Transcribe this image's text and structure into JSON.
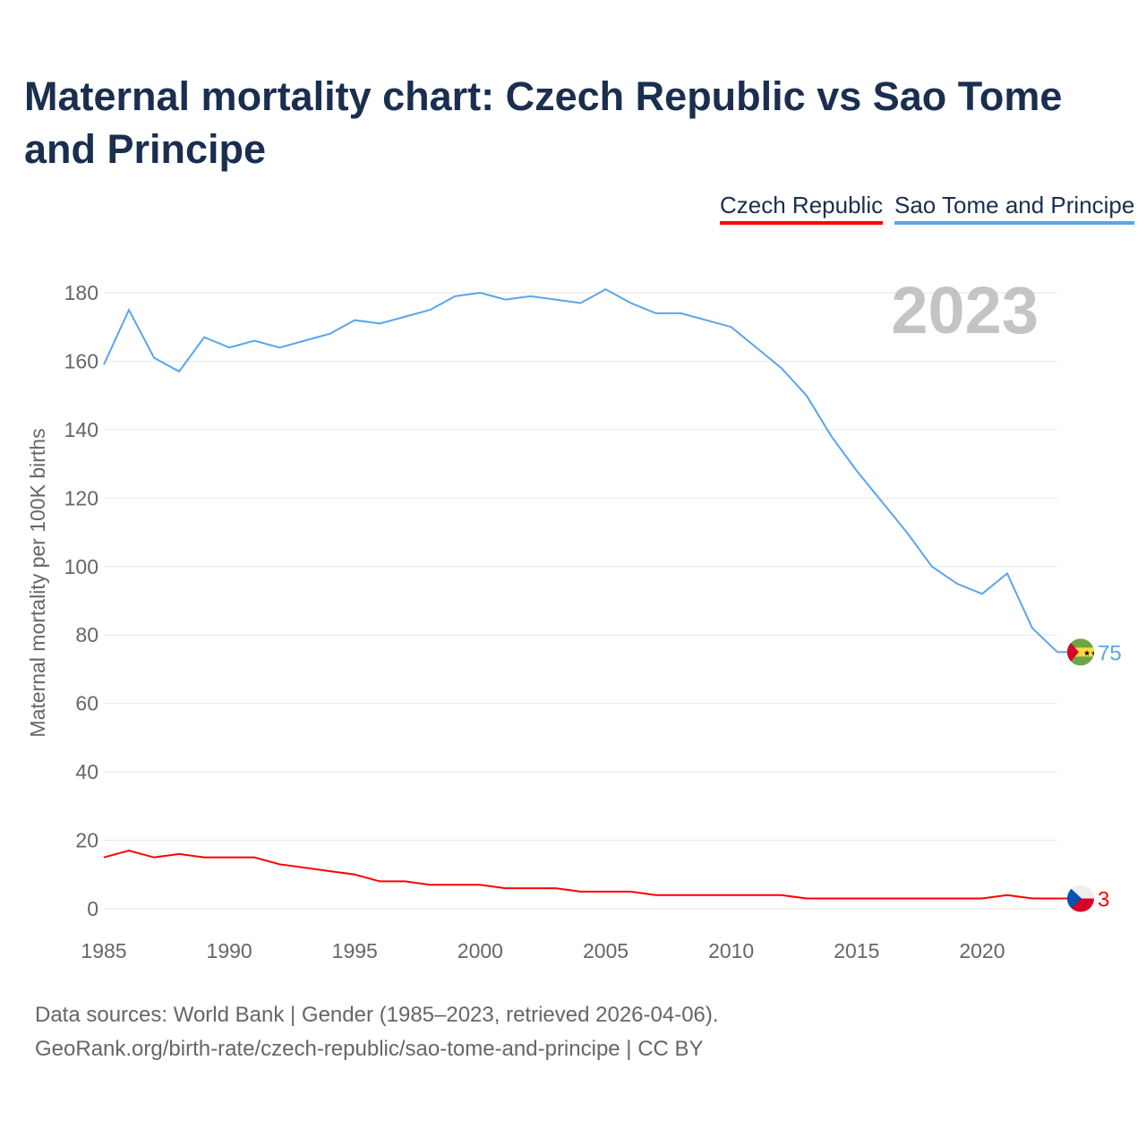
{
  "title": "Maternal mortality chart: Czech Republic vs Sao Tome and Principe",
  "year_watermark": "2023",
  "footer": {
    "line1": "Data sources: World Bank | Gender (1985–2023, retrieved 2026-04-06).",
    "line2": "GeoRank.org/birth-rate/czech-republic/sao-tome-and-principe | CC BY"
  },
  "chart_data": {
    "type": "line",
    "title": "Maternal mortality chart: Czech Republic vs Sao Tome and Principe",
    "xlabel": "",
    "ylabel": "Maternal mortality per 100K births",
    "x": [
      1985,
      1986,
      1987,
      1988,
      1989,
      1990,
      1991,
      1992,
      1993,
      1994,
      1995,
      1996,
      1997,
      1998,
      1999,
      2000,
      2001,
      2002,
      2003,
      2004,
      2005,
      2006,
      2007,
      2008,
      2009,
      2010,
      2011,
      2012,
      2013,
      2014,
      2015,
      2016,
      2017,
      2018,
      2019,
      2020,
      2021,
      2022,
      2023
    ],
    "xticks": [
      1985,
      1990,
      1995,
      2000,
      2005,
      2010,
      2015,
      2020
    ],
    "yticks": [
      0,
      20,
      40,
      60,
      80,
      100,
      120,
      140,
      160,
      180
    ],
    "xlim": [
      1985,
      2023
    ],
    "ylim": [
      0,
      180
    ],
    "grid": true,
    "legend_position": "top-right",
    "series": [
      {
        "name": "Czech Republic",
        "color": "#ff0000",
        "end_label": "3",
        "flag": "czech-flag",
        "values": [
          15,
          17,
          15,
          16,
          15,
          15,
          15,
          13,
          12,
          11,
          10,
          8,
          8,
          7,
          7,
          7,
          6,
          6,
          6,
          5,
          5,
          5,
          4,
          4,
          4,
          4,
          4,
          4,
          3,
          3,
          3,
          3,
          3,
          3,
          3,
          3,
          4,
          3,
          3
        ]
      },
      {
        "name": "Sao Tome and Principe",
        "color": "#5aa5ea",
        "end_label": "75",
        "flag": "sao-tome-flag",
        "values": [
          159,
          175,
          161,
          157,
          167,
          164,
          166,
          164,
          166,
          168,
          172,
          171,
          173,
          175,
          179,
          180,
          178,
          179,
          178,
          177,
          181,
          177,
          174,
          174,
          172,
          170,
          164,
          158,
          150,
          138,
          128,
          119,
          110,
          100,
          95,
          92,
          98,
          82,
          75
        ]
      }
    ]
  }
}
